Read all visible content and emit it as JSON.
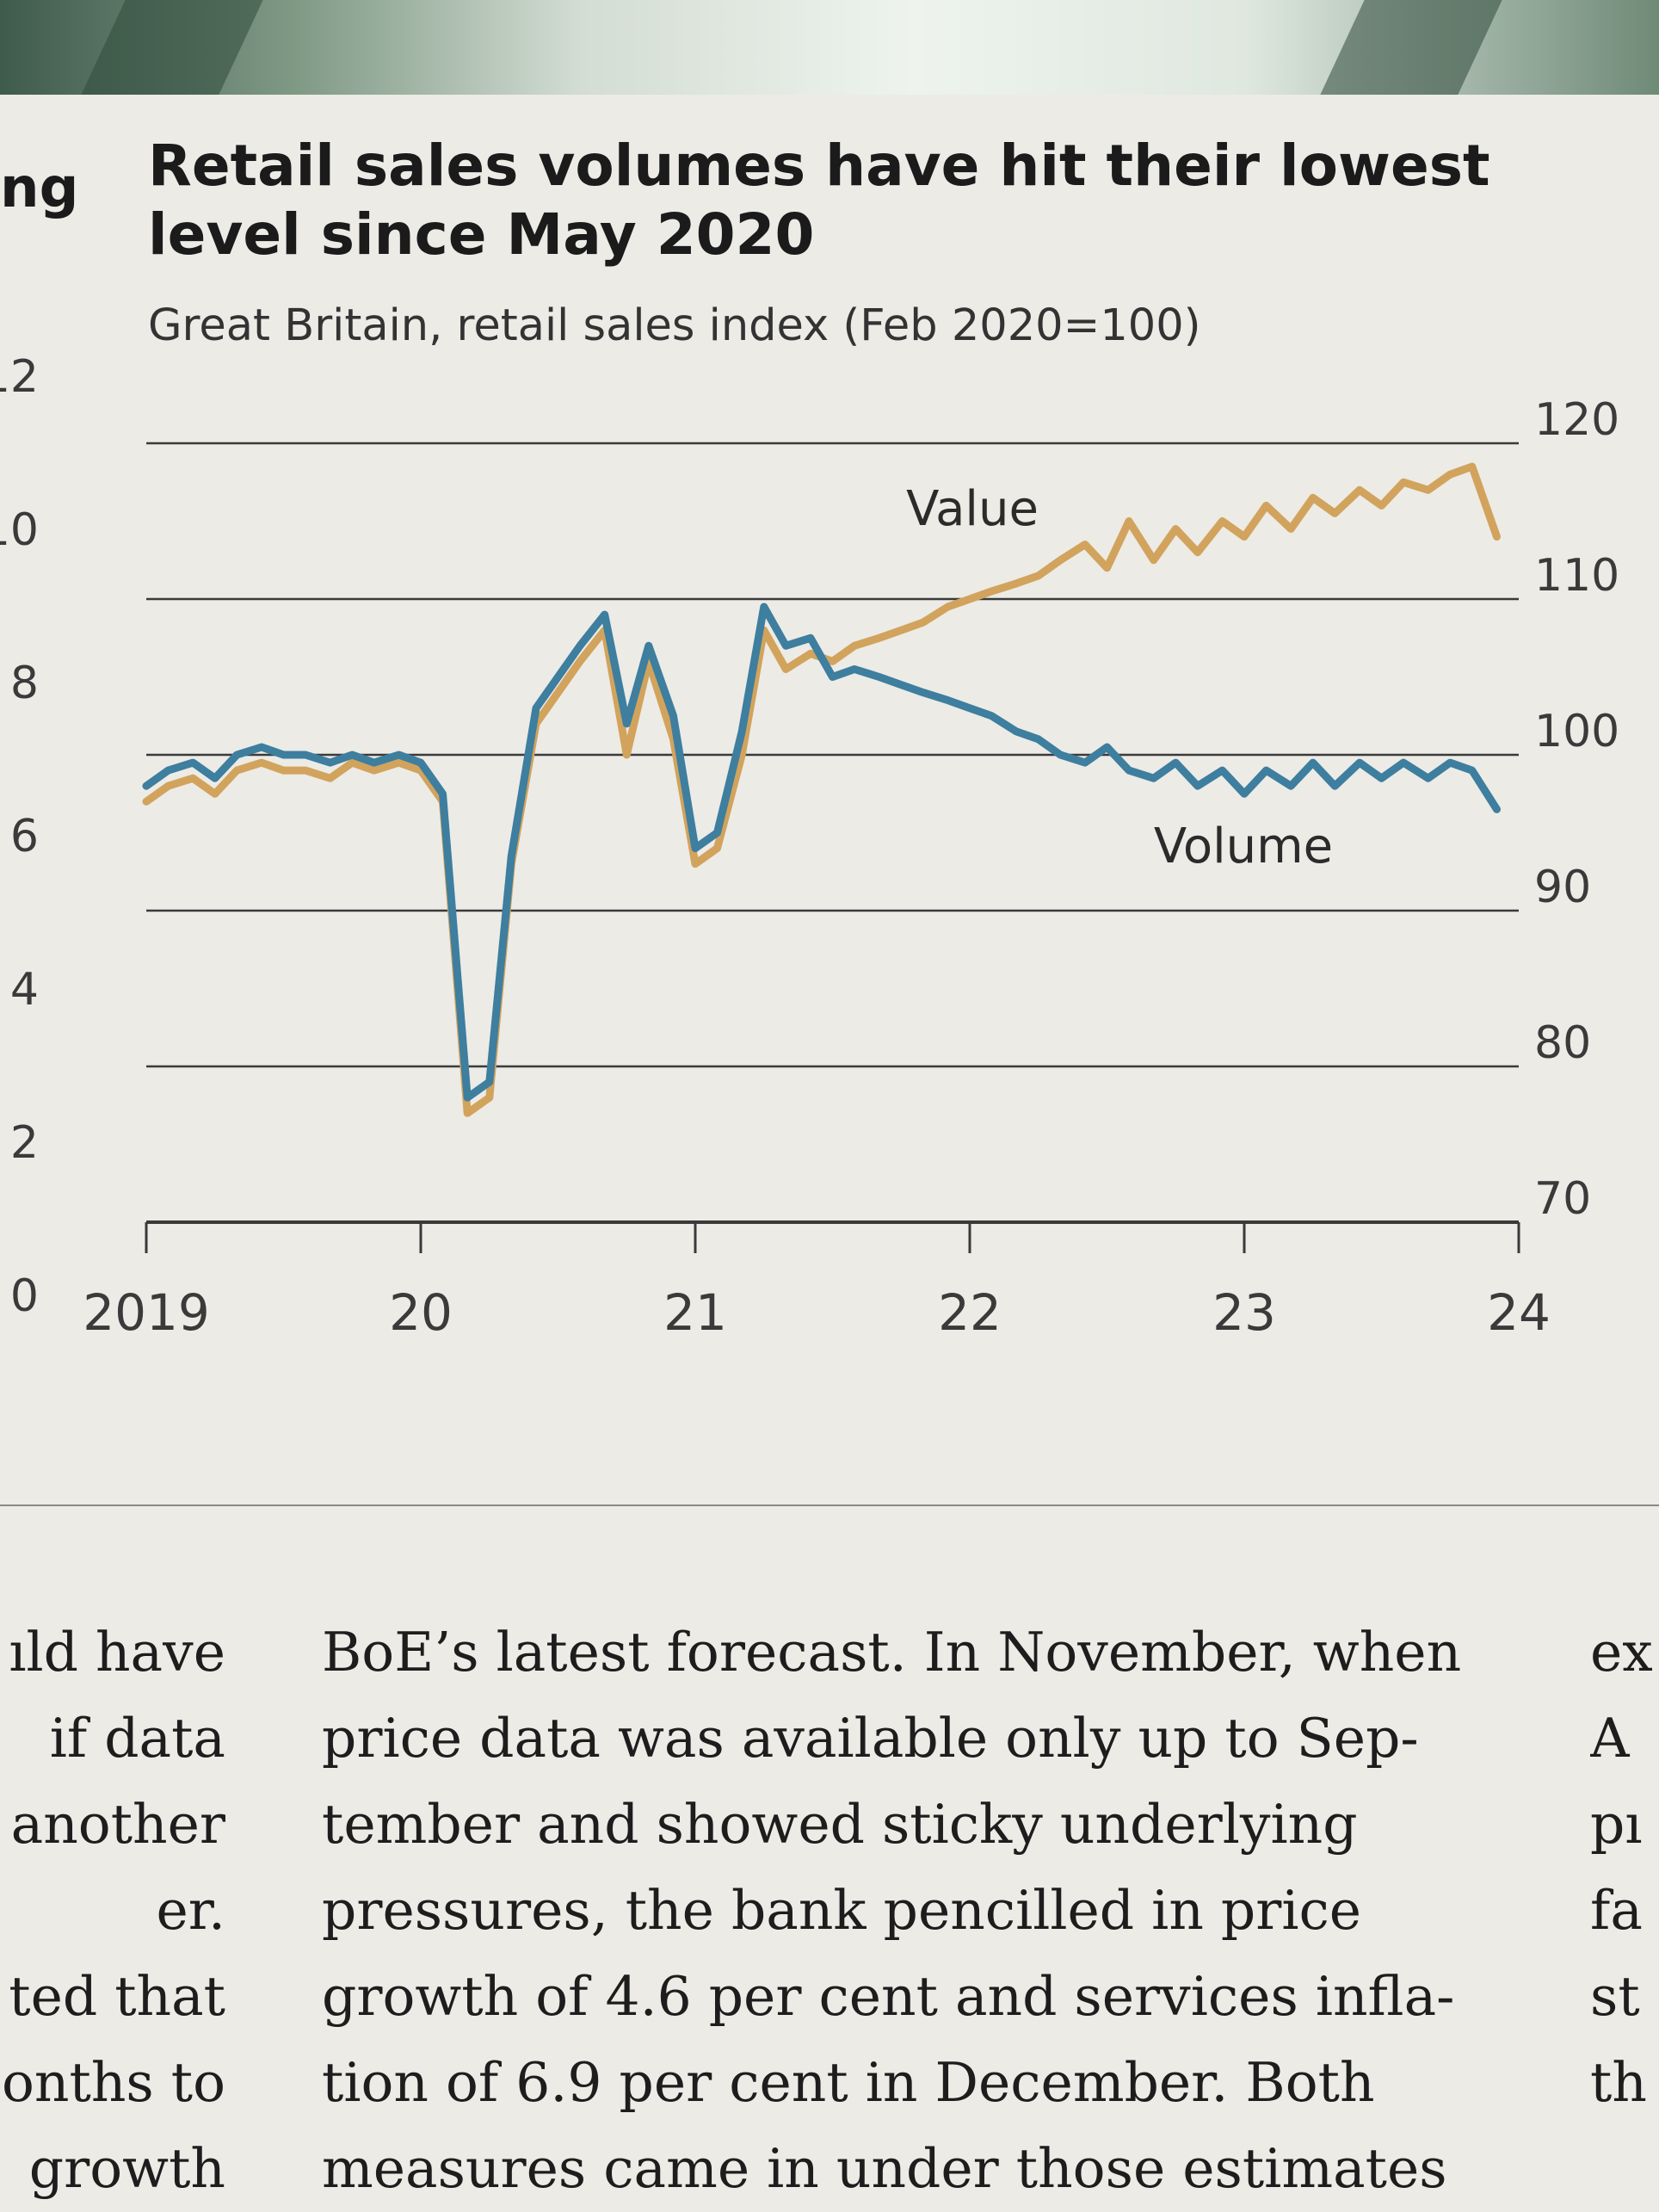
{
  "colors": {
    "volume": "#3e7e9f",
    "value": "#d2a35c",
    "grid": "#3a3a3a",
    "paper": "#ecebe6"
  },
  "left_strip": {
    "headline_fragment": "ng",
    "axis_ticks": [
      "12",
      "10",
      "8",
      "6",
      "4",
      "2",
      "0"
    ]
  },
  "chart_data": {
    "type": "line",
    "title_line1": "Retail sales volumes have hit their lowest",
    "title_line2": "level since May 2020",
    "subtitle": "Great Britain, retail sales index (Feb 2020=100)",
    "xlabel": "",
    "ylabel": "",
    "xlim": [
      2019,
      2024
    ],
    "ylim": [
      70,
      120
    ],
    "yticks": [
      "120",
      "110",
      "100",
      "90",
      "80",
      "70"
    ],
    "yticks_values": [
      120,
      110,
      100,
      90,
      80,
      70
    ],
    "xticks": [
      "2019",
      "20",
      "21",
      "22",
      "23",
      "24"
    ],
    "xticks_values": [
      2019,
      2020,
      2021,
      2022,
      2023,
      2024
    ],
    "series": [
      {
        "name": "Value",
        "label": "Value",
        "x": [
          2019.0,
          2019.08,
          2019.17,
          2019.25,
          2019.33,
          2019.42,
          2019.5,
          2019.58,
          2019.67,
          2019.75,
          2019.83,
          2019.92,
          2020.0,
          2020.08,
          2020.17,
          2020.25,
          2020.33,
          2020.42,
          2020.5,
          2020.58,
          2020.67,
          2020.75,
          2020.83,
          2020.92,
          2021.0,
          2021.08,
          2021.17,
          2021.25,
          2021.33,
          2021.42,
          2021.5,
          2021.58,
          2021.67,
          2021.75,
          2021.83,
          2021.92,
          2022.0,
          2022.08,
          2022.17,
          2022.25,
          2022.33,
          2022.42,
          2022.5,
          2022.58,
          2022.67,
          2022.75,
          2022.83,
          2022.92,
          2023.0,
          2023.08,
          2023.17,
          2023.25,
          2023.33,
          2023.42,
          2023.5,
          2023.58,
          2023.67,
          2023.75,
          2023.83,
          2023.92
        ],
        "values": [
          97.0,
          98.0,
          98.5,
          97.5,
          99.0,
          99.5,
          99.0,
          99.0,
          98.5,
          99.5,
          99.0,
          99.5,
          99.0,
          97.0,
          77.0,
          78.0,
          93.0,
          102.0,
          104.0,
          106.0,
          108.0,
          100.0,
          106.0,
          101.0,
          93.0,
          94.0,
          100.0,
          108.0,
          105.5,
          106.5,
          106.0,
          107.0,
          107.5,
          108.0,
          108.5,
          109.5,
          110.0,
          110.5,
          111.0,
          111.5,
          112.5,
          113.5,
          112.0,
          115.0,
          112.5,
          114.5,
          113.0,
          115.0,
          114.0,
          116.0,
          114.5,
          116.5,
          115.5,
          117.0,
          116.0,
          117.5,
          117.0,
          118.0,
          118.5,
          114.0
        ]
      },
      {
        "name": "Volume",
        "label": "Volume",
        "x": [
          2019.0,
          2019.08,
          2019.17,
          2019.25,
          2019.33,
          2019.42,
          2019.5,
          2019.58,
          2019.67,
          2019.75,
          2019.83,
          2019.92,
          2020.0,
          2020.08,
          2020.17,
          2020.25,
          2020.33,
          2020.42,
          2020.5,
          2020.58,
          2020.67,
          2020.75,
          2020.83,
          2020.92,
          2021.0,
          2021.08,
          2021.17,
          2021.25,
          2021.33,
          2021.42,
          2021.5,
          2021.58,
          2021.67,
          2021.75,
          2021.83,
          2021.92,
          2022.0,
          2022.08,
          2022.17,
          2022.25,
          2022.33,
          2022.42,
          2022.5,
          2022.58,
          2022.67,
          2022.75,
          2022.83,
          2022.92,
          2023.0,
          2023.08,
          2023.17,
          2023.25,
          2023.33,
          2023.42,
          2023.5,
          2023.58,
          2023.67,
          2023.75,
          2023.83,
          2023.92
        ],
        "values": [
          98.0,
          99.0,
          99.5,
          98.5,
          100.0,
          100.5,
          100.0,
          100.0,
          99.5,
          100.0,
          99.5,
          100.0,
          99.5,
          97.5,
          78.0,
          79.0,
          93.5,
          103.0,
          105.0,
          107.0,
          109.0,
          102.0,
          107.0,
          102.5,
          94.0,
          95.0,
          101.5,
          109.5,
          107.0,
          107.5,
          105.0,
          105.5,
          105.0,
          104.5,
          104.0,
          103.5,
          103.0,
          102.5,
          101.5,
          101.0,
          100.0,
          99.5,
          100.5,
          99.0,
          98.5,
          99.5,
          98.0,
          99.0,
          97.5,
          99.0,
          98.0,
          99.5,
          98.0,
          99.5,
          98.5,
          99.5,
          98.5,
          99.5,
          99.0,
          96.5
        ]
      }
    ]
  },
  "article": {
    "left_column": [
      "ıld have",
      "if data",
      "another",
      "er.",
      "ted that",
      "onths to",
      "growth"
    ],
    "main_column": [
      "BoE’s latest forecast. In November, when",
      "price data was available only up to Sep-",
      "tember and showed sticky underlying",
      "pressures, the bank pencilled in price",
      "growth of 4.6 per cent and services infla-",
      "tion of 6.9 per cent in December. Both",
      "measures came in under those estimates"
    ],
    "right_column": [
      "ex",
      "A",
      "pı",
      "fa",
      "st",
      "th"
    ]
  }
}
